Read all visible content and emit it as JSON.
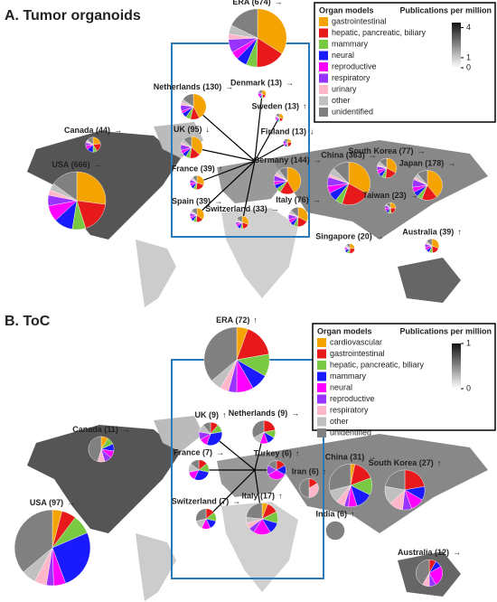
{
  "chart_data": [
    {
      "type": "pie",
      "title": "A. Tumor organoids",
      "legend_title": "Organ models",
      "colorbar_title": "Publications per million",
      "colorbar_lim": [
        0,
        4.5
      ],
      "colorbar_ticks": [
        0,
        1,
        4
      ],
      "categories": [
        "gastrointestinal",
        "hepatic, pancreatic, biliary",
        "mammary",
        "neural",
        "reproductive",
        "respiratory",
        "urinary",
        "other",
        "unidentified"
      ],
      "colors": [
        "#f5a300",
        "#e8191b",
        "#7ac943",
        "#1a1aff",
        "#ff00ff",
        "#9933ff",
        "#ffb6c8",
        "#c0c0c0",
        "#808080"
      ],
      "pies": [
        {
          "label": "ERA (674)",
          "trend": "→",
          "values": [
            230,
            110,
            40,
            40,
            30,
            50,
            20,
            34,
            120
          ]
        },
        {
          "label": "Netherlands (130)",
          "trend": "→",
          "values": [
            55,
            15,
            8,
            8,
            4,
            10,
            5,
            5,
            20
          ]
        },
        {
          "label": "Denmark (13)",
          "trend": "→",
          "values": [
            4,
            2,
            1,
            1,
            2,
            1,
            0,
            0,
            2
          ]
        },
        {
          "label": "Sweden (13)",
          "trend": "↑",
          "values": [
            4,
            2,
            1,
            1,
            1,
            1,
            1,
            0,
            2
          ]
        },
        {
          "label": "UK (95)",
          "trend": "↓",
          "values": [
            35,
            15,
            6,
            6,
            5,
            8,
            3,
            5,
            12
          ]
        },
        {
          "label": "Finland (13)",
          "trend": "↓",
          "values": [
            3,
            3,
            1,
            1,
            1,
            2,
            0,
            0,
            2
          ]
        },
        {
          "label": "Canada (44)",
          "trend": "→",
          "values": [
            10,
            8,
            4,
            6,
            4,
            3,
            1,
            2,
            6
          ]
        },
        {
          "label": "France (39)",
          "trend": "↑",
          "values": [
            12,
            8,
            3,
            3,
            3,
            3,
            1,
            2,
            4
          ]
        },
        {
          "label": "Germany (144)",
          "trend": "→",
          "values": [
            60,
            25,
            8,
            8,
            6,
            10,
            5,
            7,
            15
          ]
        },
        {
          "label": "China (363)",
          "trend": "→",
          "values": [
            120,
            80,
            20,
            25,
            20,
            25,
            8,
            20,
            45
          ]
        },
        {
          "label": "South Korea (77)",
          "trend": "→",
          "values": [
            25,
            15,
            5,
            5,
            5,
            5,
            2,
            5,
            10
          ]
        },
        {
          "label": "Japan (178)",
          "trend": "→",
          "values": [
            70,
            30,
            10,
            10,
            10,
            15,
            5,
            8,
            20
          ]
        },
        {
          "label": "USA (666)",
          "trend": "→",
          "values": [
            180,
            120,
            50,
            70,
            60,
            40,
            20,
            26,
            100
          ]
        },
        {
          "label": "Spain (39)",
          "trend": "→",
          "values": [
            14,
            6,
            3,
            3,
            2,
            3,
            1,
            2,
            5
          ]
        },
        {
          "label": "Switzerland (33)",
          "trend": "→",
          "values": [
            10,
            6,
            2,
            3,
            2,
            2,
            1,
            2,
            5
          ]
        },
        {
          "label": "Italy (76)",
          "trend": "→",
          "values": [
            25,
            14,
            5,
            5,
            5,
            6,
            2,
            4,
            10
          ]
        },
        {
          "label": "Taiwan (23)",
          "trend": "→",
          "values": [
            6,
            5,
            2,
            2,
            2,
            2,
            0,
            1,
            3
          ]
        },
        {
          "label": "Singapore (20)",
          "trend": "→",
          "values": [
            5,
            5,
            2,
            2,
            1,
            1,
            1,
            1,
            2
          ]
        },
        {
          "label": "Australia (39)",
          "trend": "↑",
          "values": [
            12,
            7,
            3,
            3,
            3,
            3,
            1,
            2,
            5
          ]
        }
      ]
    },
    {
      "type": "pie",
      "title": "B. ToC",
      "legend_title": "Organ models",
      "colorbar_title": "Publications per million",
      "colorbar_lim": [
        0,
        1
      ],
      "colorbar_ticks": [
        0,
        1
      ],
      "categories": [
        "cardiovascular",
        "gastrointestinal",
        "hepatic, pancreatic, biliary",
        "mammary",
        "neural",
        "reproductive",
        "respiratory",
        "other",
        "unidentified"
      ],
      "colors": [
        "#f5a300",
        "#e8191b",
        "#7ac943",
        "#1a1aff",
        "#ff00ff",
        "#9933ff",
        "#ffb6c8",
        "#c0c0c0",
        "#808080"
      ],
      "pies": [
        {
          "label": "ERA (72)",
          "trend": "↑",
          "values": [
            4,
            12,
            8,
            6,
            6,
            3,
            3,
            4,
            26
          ]
        },
        {
          "label": "UK (9)",
          "trend": "↑",
          "values": [
            0,
            1,
            1,
            3,
            1,
            1,
            0,
            1,
            1
          ]
        },
        {
          "label": "Netherlands (9)",
          "trend": "→",
          "values": [
            0,
            2,
            1,
            1,
            1,
            0,
            0,
            1,
            3
          ]
        },
        {
          "label": "Canada (11)",
          "trend": "→",
          "values": [
            1,
            0,
            1,
            1,
            1,
            1,
            1,
            0,
            5
          ]
        },
        {
          "label": "France (7)",
          "trend": "→",
          "values": [
            0,
            1,
            1,
            2,
            1,
            0,
            0,
            1,
            1
          ]
        },
        {
          "label": "Turkey (6)",
          "trend": "↑",
          "values": [
            0,
            1,
            0,
            1,
            2,
            1,
            0,
            0,
            1
          ]
        },
        {
          "label": "Iran (6)",
          "trend": "↑",
          "values": [
            0,
            1,
            0,
            0,
            0,
            0,
            2,
            0,
            3
          ]
        },
        {
          "label": "China (31)",
          "trend": "→",
          "values": [
            1,
            5,
            4,
            4,
            2,
            1,
            2,
            3,
            9
          ]
        },
        {
          "label": "South Korea (27)",
          "trend": "↑",
          "values": [
            0,
            6,
            0,
            3,
            3,
            2,
            3,
            4,
            6
          ]
        },
        {
          "label": "USA (97)",
          "trend": "→",
          "values": [
            4,
            6,
            8,
            25,
            5,
            3,
            5,
            6,
            35
          ]
        },
        {
          "label": "Switzerland (7)",
          "trend": "→",
          "values": [
            0,
            1,
            1,
            1,
            1,
            0,
            0,
            1,
            2
          ]
        },
        {
          "label": "Italy (17)",
          "trend": "↑",
          "values": [
            1,
            2,
            2,
            2,
            3,
            1,
            1,
            1,
            4
          ]
        },
        {
          "label": "India (6)",
          "trend": "↑",
          "values": [
            0,
            0,
            0,
            0,
            0,
            0,
            0,
            0,
            6
          ]
        },
        {
          "label": "Australia (12)",
          "trend": "→",
          "values": [
            0,
            1,
            0,
            1,
            3,
            1,
            1,
            0,
            5
          ]
        }
      ]
    }
  ]
}
